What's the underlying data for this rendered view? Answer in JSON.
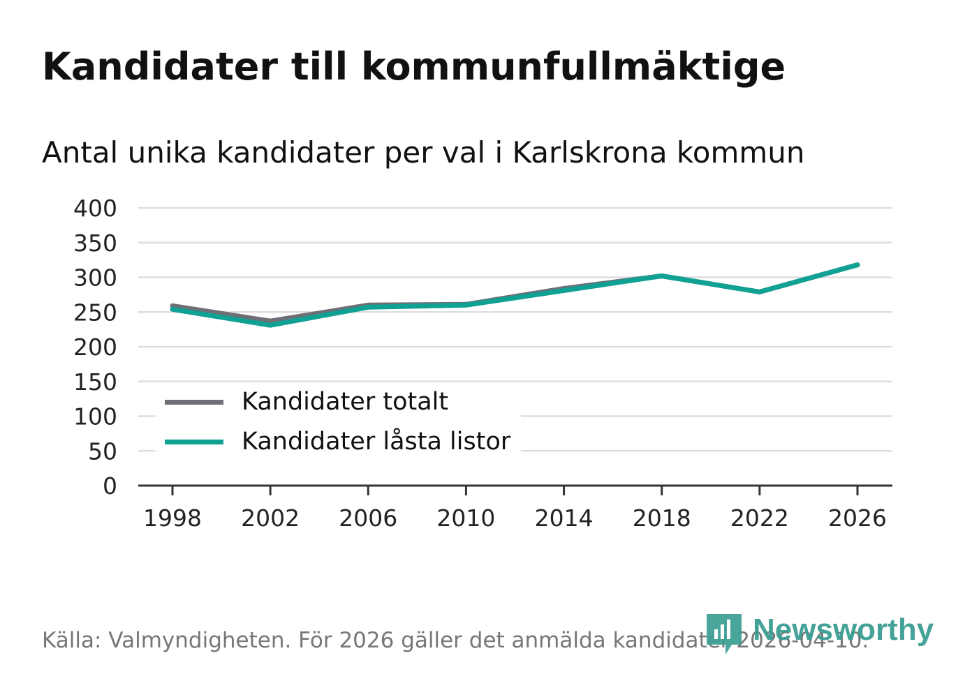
{
  "header": {
    "title": "Kandidater till kommunfullmäktige",
    "subtitle": "Antal unika kandidater per val i Karlskrona kommun"
  },
  "footer": {
    "source": "Källa: Valmyndigheten. För 2026 gäller det anmälda kandidater 2026-04-10.",
    "brand": "Newsworthy"
  },
  "colors": {
    "total": "#6e6e76",
    "locked": "#0fa193",
    "grid": "#dddddd",
    "axis": "#333333",
    "brand": "#3b9e93"
  },
  "chart_data": {
    "type": "line",
    "title": "Kandidater till kommunfullmäktige",
    "subtitle": "Antal unika kandidater per val i Karlskrona kommun",
    "xlabel": "",
    "ylabel": "",
    "x": [
      1998,
      2002,
      2006,
      2010,
      2014,
      2018,
      2022,
      2026
    ],
    "x_tick_labels": [
      "1998",
      "2002",
      "2006",
      "2010",
      "2014",
      "2018",
      "2022",
      "2026"
    ],
    "y_ticks": [
      0,
      50,
      100,
      150,
      200,
      250,
      300,
      350,
      400
    ],
    "ylim": [
      0,
      400
    ],
    "grid": true,
    "legend_position": "bottom-left",
    "series": [
      {
        "name": "Kandidater totalt",
        "color": "#6e6e76",
        "values": [
          259,
          237,
          260,
          261,
          284,
          302,
          279,
          318
        ]
      },
      {
        "name": "Kandidater låsta listor",
        "color": "#0fa193",
        "values": [
          254,
          231,
          257,
          260,
          281,
          302,
          279,
          318
        ]
      }
    ]
  }
}
